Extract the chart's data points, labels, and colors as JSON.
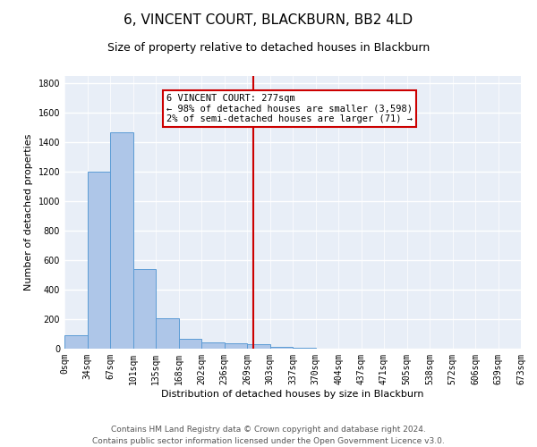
{
  "title": "6, VINCENT COURT, BLACKBURN, BB2 4LD",
  "subtitle": "Size of property relative to detached houses in Blackburn",
  "xlabel": "Distribution of detached houses by size in Blackburn",
  "ylabel": "Number of detached properties",
  "footer_line1": "Contains HM Land Registry data © Crown copyright and database right 2024.",
  "footer_line2": "Contains public sector information licensed under the Open Government Licence v3.0.",
  "bar_edges": [
    0,
    33.5,
    67,
    100.5,
    134,
    167.5,
    201,
    234.5,
    268,
    301.5,
    335,
    368.5,
    402,
    435.5,
    469,
    502.5,
    536,
    569.5,
    603,
    636.5,
    670
  ],
  "bar_heights": [
    90,
    1200,
    1470,
    540,
    205,
    65,
    45,
    35,
    28,
    13,
    5,
    0,
    0,
    0,
    0,
    0,
    0,
    0,
    0,
    0
  ],
  "tick_labels": [
    "0sqm",
    "34sqm",
    "67sqm",
    "101sqm",
    "135sqm",
    "168sqm",
    "202sqm",
    "236sqm",
    "269sqm",
    "303sqm",
    "337sqm",
    "370sqm",
    "404sqm",
    "437sqm",
    "471sqm",
    "505sqm",
    "538sqm",
    "572sqm",
    "606sqm",
    "639sqm",
    "673sqm"
  ],
  "bar_color": "#aec6e8",
  "bar_edge_color": "#5b9bd5",
  "bg_color": "#e8eef7",
  "grid_color": "#ffffff",
  "vline_x": 277,
  "vline_color": "#cc0000",
  "annotation_text": "6 VINCENT COURT: 277sqm\n← 98% of detached houses are smaller (3,598)\n2% of semi-detached houses are larger (71) →",
  "annotation_box_color": "#cc0000",
  "ylim": [
    0,
    1850
  ],
  "yticks": [
    0,
    200,
    400,
    600,
    800,
    1000,
    1200,
    1400,
    1600,
    1800
  ],
  "title_fontsize": 11,
  "subtitle_fontsize": 9,
  "axis_label_fontsize": 8,
  "tick_fontsize": 7,
  "footer_fontsize": 6.5,
  "annotation_fontsize": 7.5
}
